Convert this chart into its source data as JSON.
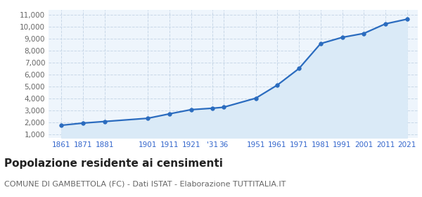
{
  "years": [
    1861,
    1871,
    1881,
    1901,
    1911,
    1921,
    1931,
    1936,
    1951,
    1961,
    1971,
    1981,
    1991,
    2001,
    2011,
    2021
  ],
  "population": [
    1756,
    1938,
    2071,
    2340,
    2710,
    3060,
    3180,
    3260,
    4020,
    5120,
    6500,
    8580,
    9100,
    9430,
    10230,
    10620
  ],
  "x_tick_positions": [
    1861,
    1871,
    1881,
    1901,
    1911,
    1921,
    1931,
    1936,
    1951,
    1961,
    1971,
    1981,
    1991,
    2001,
    2011,
    2021
  ],
  "x_tick_labels": [
    "1861",
    "1871",
    "1881",
    "1901",
    "1911",
    "1921",
    "'31",
    "36",
    "1951",
    "1961",
    "1971",
    "1981",
    "1991",
    "2001",
    "2011",
    "2021"
  ],
  "yticks": [
    1000,
    2000,
    3000,
    4000,
    5000,
    6000,
    7000,
    8000,
    9000,
    10000,
    11000
  ],
  "ylim": [
    700,
    11400
  ],
  "xlim": [
    1855,
    2026
  ],
  "line_color": "#2b6cbf",
  "fill_color": "#daeaf7",
  "marker_color": "#2b6cbf",
  "grid_color": "#c8d8e8",
  "bg_color": "#eef5fc",
  "title": "Popolazione residente ai censimenti",
  "subtitle": "COMUNE DI GAMBETTOLA (FC) - Dati ISTAT - Elaborazione TUTTITALIA.IT",
  "title_fontsize": 11,
  "subtitle_fontsize": 8
}
